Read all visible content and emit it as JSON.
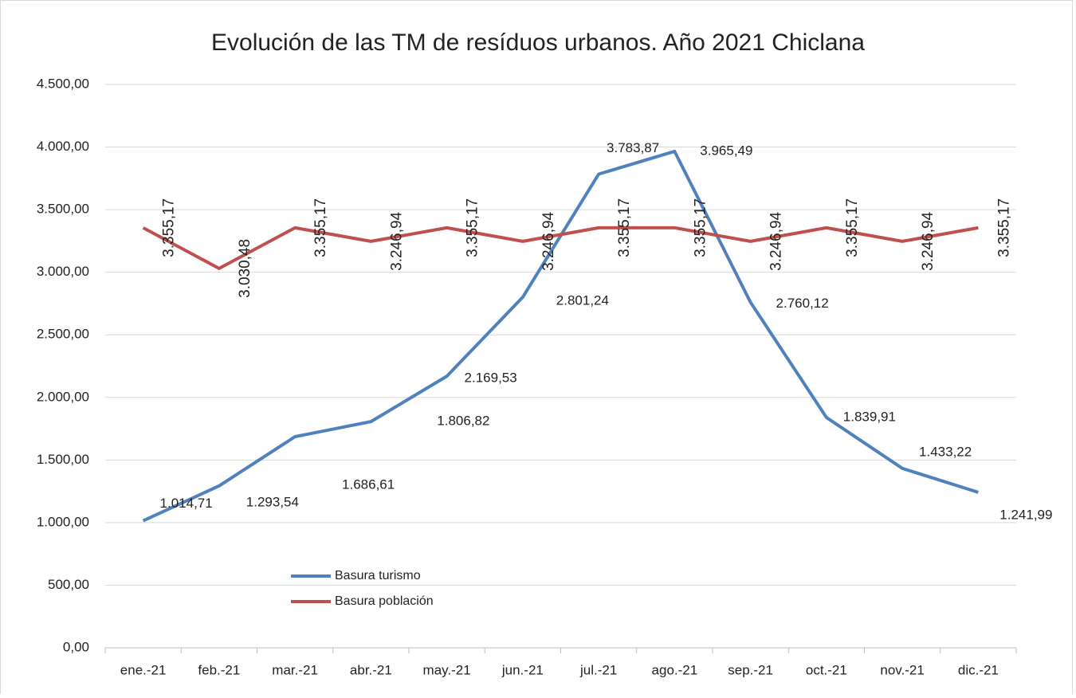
{
  "chart_data": {
    "type": "line",
    "title": "Evolución de las TM de resíduos urbanos. Año 2021 Chiclana",
    "categories": [
      "ene.-21",
      "feb.-21",
      "mar.-21",
      "abr.-21",
      "may.-21",
      "jun.-21",
      "jul.-21",
      "ago.-21",
      "sep.-21",
      "oct.-21",
      "nov.-21",
      "dic.-21"
    ],
    "series": [
      {
        "name": "Basura turismo",
        "color": "#4f81bd",
        "values": [
          1014.71,
          1293.54,
          1686.61,
          1806.82,
          2169.53,
          2801.24,
          3783.87,
          3965.49,
          2760.12,
          1839.91,
          1433.22,
          1241.99
        ],
        "value_labels": [
          "1.014,71",
          "1.293,54",
          "1.686,61",
          "1.806,82",
          "2.169,53",
          "2.801,24",
          "3.783,87",
          "3.965,49",
          "2.760,12",
          "1.839,91",
          "1.433,22",
          "1.241,99"
        ]
      },
      {
        "name": "Basura población",
        "color": "#c0504d",
        "values": [
          3355.17,
          3030.48,
          3355.17,
          3246.94,
          3355.17,
          3246.94,
          3355.17,
          3355.17,
          3246.94,
          3355.17,
          3246.94,
          3355.17
        ],
        "value_labels": [
          "3.355,17",
          "3.030,48",
          "3.355,17",
          "3.246,94",
          "3.355,17",
          "3.246,94",
          "3.355,17",
          "3.355,17",
          "3.246,94",
          "3.355,17",
          "3.246,94",
          "3.355,17"
        ]
      }
    ],
    "ylim": [
      0,
      4500
    ],
    "yticks": [
      {
        "value": 0,
        "label": "0,00"
      },
      {
        "value": 500,
        "label": "500,00"
      },
      {
        "value": 1000,
        "label": "1.000,00"
      },
      {
        "value": 1500,
        "label": "1.500,00"
      },
      {
        "value": 2000,
        "label": "2.000,00"
      },
      {
        "value": 2500,
        "label": "2.500,00"
      },
      {
        "value": 3000,
        "label": "3.000,00"
      },
      {
        "value": 3500,
        "label": "3.500,00"
      },
      {
        "value": 4000,
        "label": "4.000,00"
      },
      {
        "value": 4500,
        "label": "4.500,00"
      }
    ],
    "grid": true
  }
}
